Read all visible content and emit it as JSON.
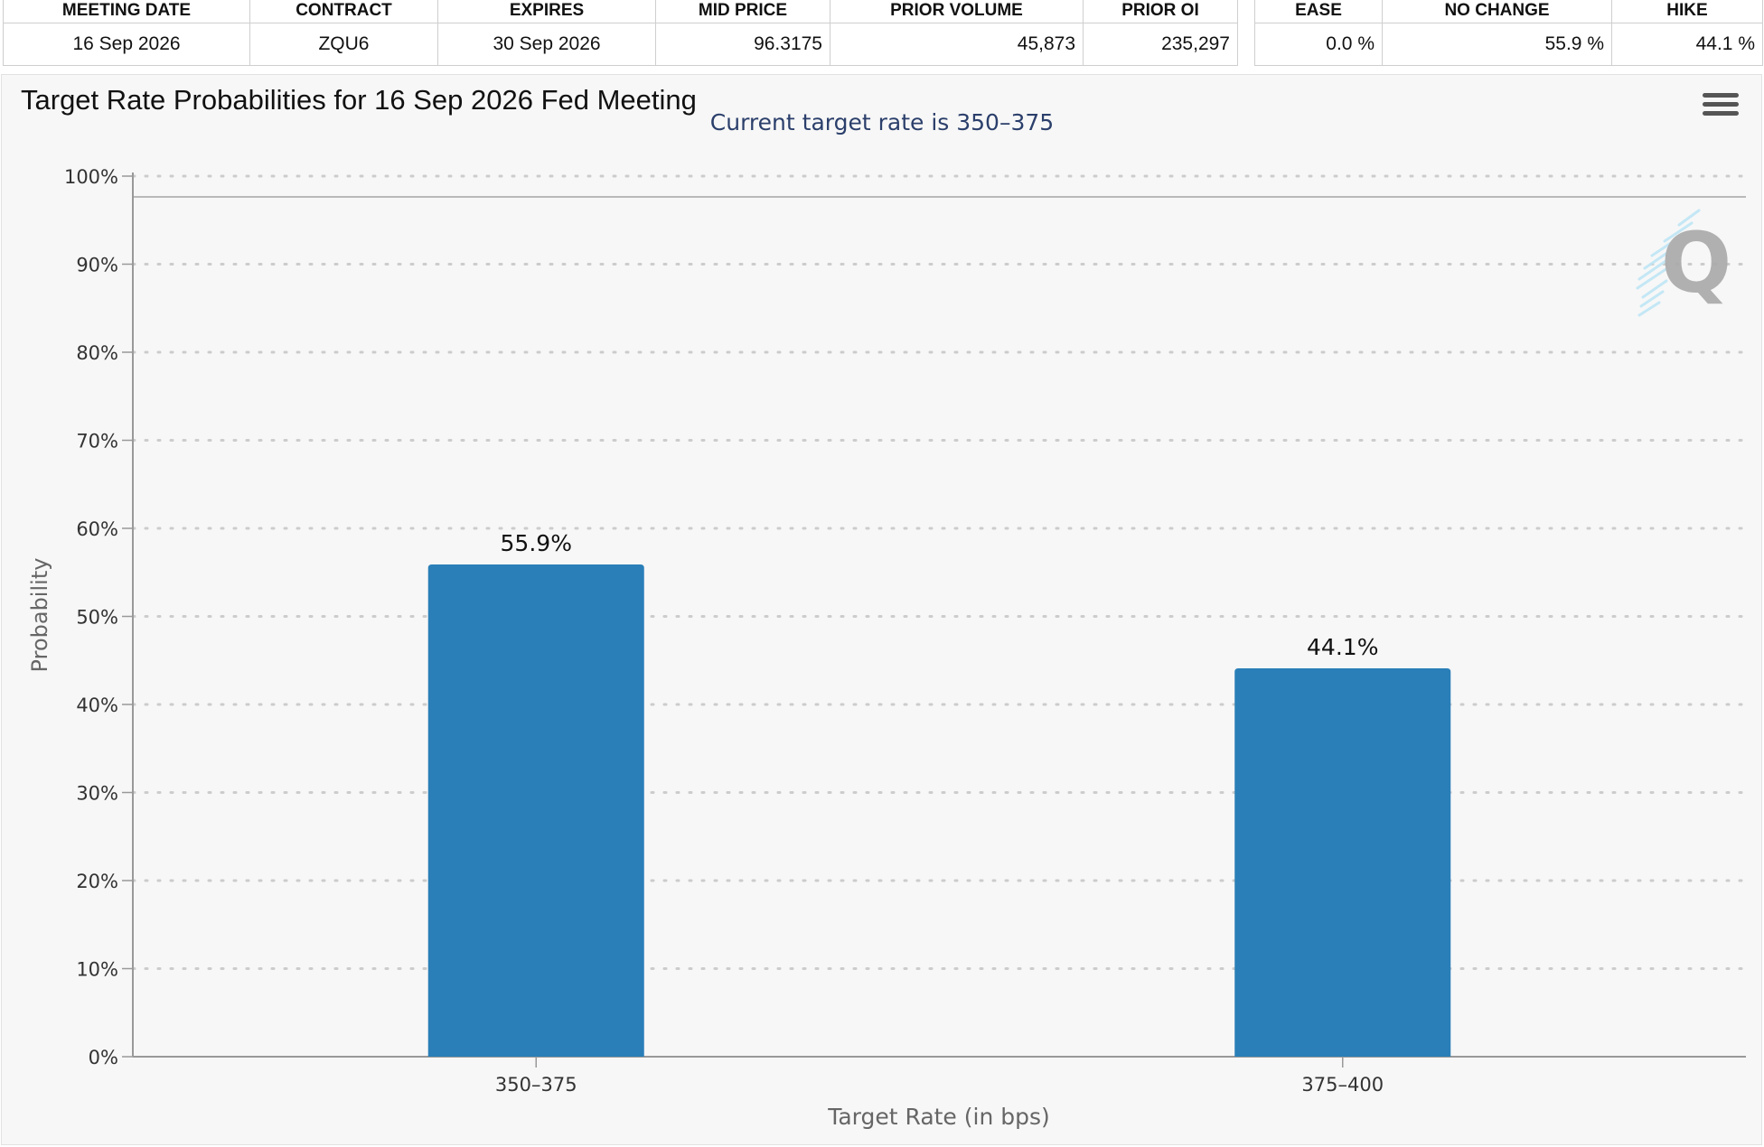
{
  "contract_table": {
    "headers": [
      "MEETING DATE",
      "CONTRACT",
      "EXPIRES",
      "MID PRICE",
      "PRIOR VOLUME",
      "PRIOR OI"
    ],
    "row": [
      "16 Sep 2026",
      "ZQU6",
      "30 Sep 2026",
      "96.3175",
      "45,873",
      "235,297"
    ]
  },
  "probability_table": {
    "headers": [
      "EASE",
      "NO CHANGE",
      "HIKE"
    ],
    "row": [
      "0.0 %",
      "55.9 %",
      "44.1 %"
    ]
  },
  "chart": {
    "title": "Target Rate Probabilities for 16 Sep 2026 Fed Meeting",
    "menu_icon": "hamburger-menu-icon",
    "watermark_icon": "q-logo-watermark"
  },
  "chart_data": {
    "type": "bar",
    "title": "Target Rate Probabilities for 16 Sep 2026 Fed Meeting",
    "subtitle": "Current target rate is 350–375",
    "xlabel": "Target Rate (in bps)",
    "ylabel": "Probability",
    "categories": [
      "350–375",
      "375–400"
    ],
    "values": [
      55.9,
      44.1
    ],
    "data_labels": [
      "55.9%",
      "44.1%"
    ],
    "ylim": [
      0,
      100
    ],
    "y_ticks": [
      0,
      10,
      20,
      30,
      40,
      50,
      60,
      70,
      80,
      90,
      100
    ],
    "y_tick_labels": [
      "0%",
      "10%",
      "20%",
      "30%",
      "40%",
      "50%",
      "60%",
      "70%",
      "80%",
      "90%",
      "100%"
    ],
    "grid": "horizontal dotted",
    "legend": "none",
    "colors": {
      "bar": "#2a7fb8",
      "subtitle": "#2b3f6b",
      "grid": "#cccccc",
      "axis": "#999999"
    }
  }
}
